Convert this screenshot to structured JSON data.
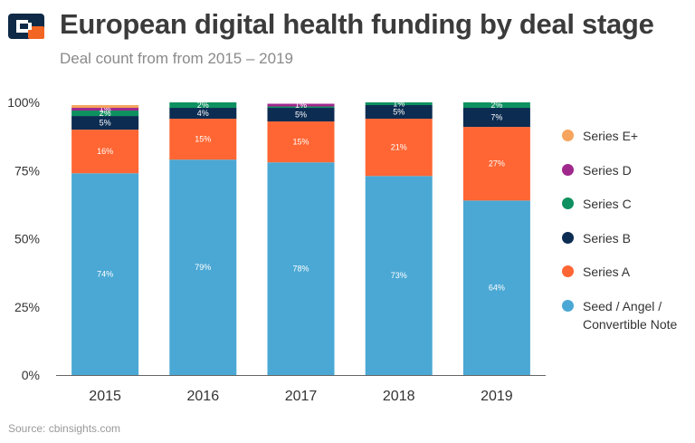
{
  "header": {
    "title": "European digital health funding by deal stage",
    "subtitle": "Deal count from from 2015 – 2019"
  },
  "logo": {
    "name": "cb-insights-logo",
    "colors": [
      "#0e2a47",
      "#f26522",
      "#ffffff"
    ]
  },
  "source": "Source: cbinsights.com",
  "chart_data": {
    "type": "bar",
    "stacked": true,
    "categories": [
      "2015",
      "2016",
      "2017",
      "2018",
      "2019"
    ],
    "ylim": [
      0,
      100
    ],
    "yticks": [
      0,
      25,
      50,
      75,
      100
    ],
    "ytick_labels": [
      "0%",
      "25%",
      "50%",
      "75%",
      "100%"
    ],
    "grid": false,
    "legend_position": "right",
    "series": [
      {
        "name": "Seed / Angel / Convertible Note",
        "color": "#4ba8d4",
        "values": [
          74,
          79,
          78,
          73,
          64
        ],
        "labels": [
          "74%",
          "79%",
          "78%",
          "73%",
          "64%"
        ]
      },
      {
        "name": "Series A",
        "color": "#ff6633",
        "values": [
          16,
          15,
          15,
          21,
          27
        ],
        "labels": [
          "16%",
          "15%",
          "15%",
          "21%",
          "27%"
        ]
      },
      {
        "name": "Series B",
        "color": "#0c2c52",
        "values": [
          5,
          4,
          5,
          5,
          7
        ],
        "labels": [
          "5%",
          "4%",
          "5%",
          "5%",
          "7%"
        ]
      },
      {
        "name": "Series C",
        "color": "#0e9160",
        "values": [
          2,
          2,
          0.5,
          1,
          2
        ],
        "labels": [
          "2%",
          "2%",
          "",
          "1%",
          "2%"
        ]
      },
      {
        "name": "Series D",
        "color": "#a0288c",
        "values": [
          1,
          0,
          1,
          0,
          0
        ],
        "labels": [
          "1%",
          "",
          "1%",
          "",
          ""
        ]
      },
      {
        "name": "Series E+",
        "color": "#f6a45e",
        "values": [
          1,
          0,
          0,
          0,
          0
        ],
        "labels": [
          "",
          "",
          "",
          "",
          ""
        ]
      }
    ]
  }
}
